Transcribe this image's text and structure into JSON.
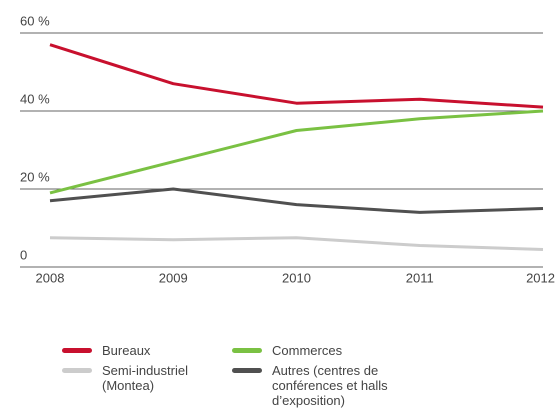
{
  "chart_data": {
    "type": "line",
    "categories": [
      "2008",
      "2009",
      "2010",
      "2011",
      "2012"
    ],
    "series": [
      {
        "name": "Bureaux",
        "color": "#c8102e",
        "values": [
          57,
          47,
          42,
          43,
          41
        ]
      },
      {
        "name": "Commerces",
        "color": "#7ac143",
        "values": [
          19,
          27,
          35,
          38,
          40
        ]
      },
      {
        "name": "Semi-industriel (Montea)",
        "color": "#cccccc",
        "values": [
          7.5,
          7,
          7.5,
          5.5,
          4.5
        ]
      },
      {
        "name": "Autres (centres de conférences et halls d’exposition)",
        "color": "#505050",
        "values": [
          17,
          20,
          16,
          14,
          15
        ]
      }
    ],
    "ylim": [
      0,
      60
    ],
    "yticks": [
      0,
      {
        "value": 20,
        "label": "20 %"
      },
      {
        "value": 40,
        "label": "40 %"
      },
      {
        "value": 60,
        "label": "60 %"
      }
    ],
    "grid": true
  }
}
